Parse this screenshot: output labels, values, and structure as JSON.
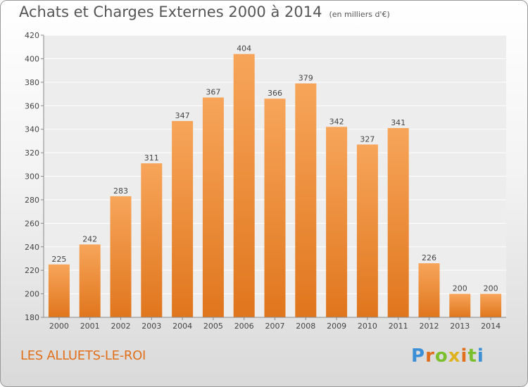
{
  "header": {
    "title": "Achats et Charges Externes 2000 à 2014",
    "subtitle": "(en milliers d'€)"
  },
  "footer": {
    "commune": "LES ALLUETS-LE-ROI",
    "brand": "Proxiti"
  },
  "colors": {
    "bar_light": "#f7a55a",
    "bar_dark": "#e0761d",
    "plot_bg": "#ededed",
    "grid": "#ffffff",
    "commune_text": "#e0701c",
    "brand_letters": [
      "#3a8fd6",
      "#e06c1e",
      "#7bbf2e",
      "#e0b21e",
      "#e0701c",
      "#7bbf2e",
      "#3a8fd6"
    ]
  },
  "chart_data": {
    "type": "bar",
    "title": "Achats et Charges Externes 2000 à 2014",
    "subtitle": "(en milliers d'€)",
    "categories": [
      "2000",
      "2001",
      "2002",
      "2003",
      "2004",
      "2005",
      "2006",
      "2007",
      "2008",
      "2009",
      "2010",
      "2011",
      "2012",
      "2013",
      "2014"
    ],
    "values": [
      225,
      242,
      283,
      311,
      347,
      367,
      404,
      366,
      379,
      342,
      327,
      341,
      226,
      200,
      200
    ],
    "ylim": [
      180,
      420
    ],
    "yticks": [
      180,
      200,
      220,
      240,
      260,
      280,
      300,
      320,
      340,
      360,
      380,
      400,
      420
    ],
    "grid": true,
    "legend": "none"
  }
}
